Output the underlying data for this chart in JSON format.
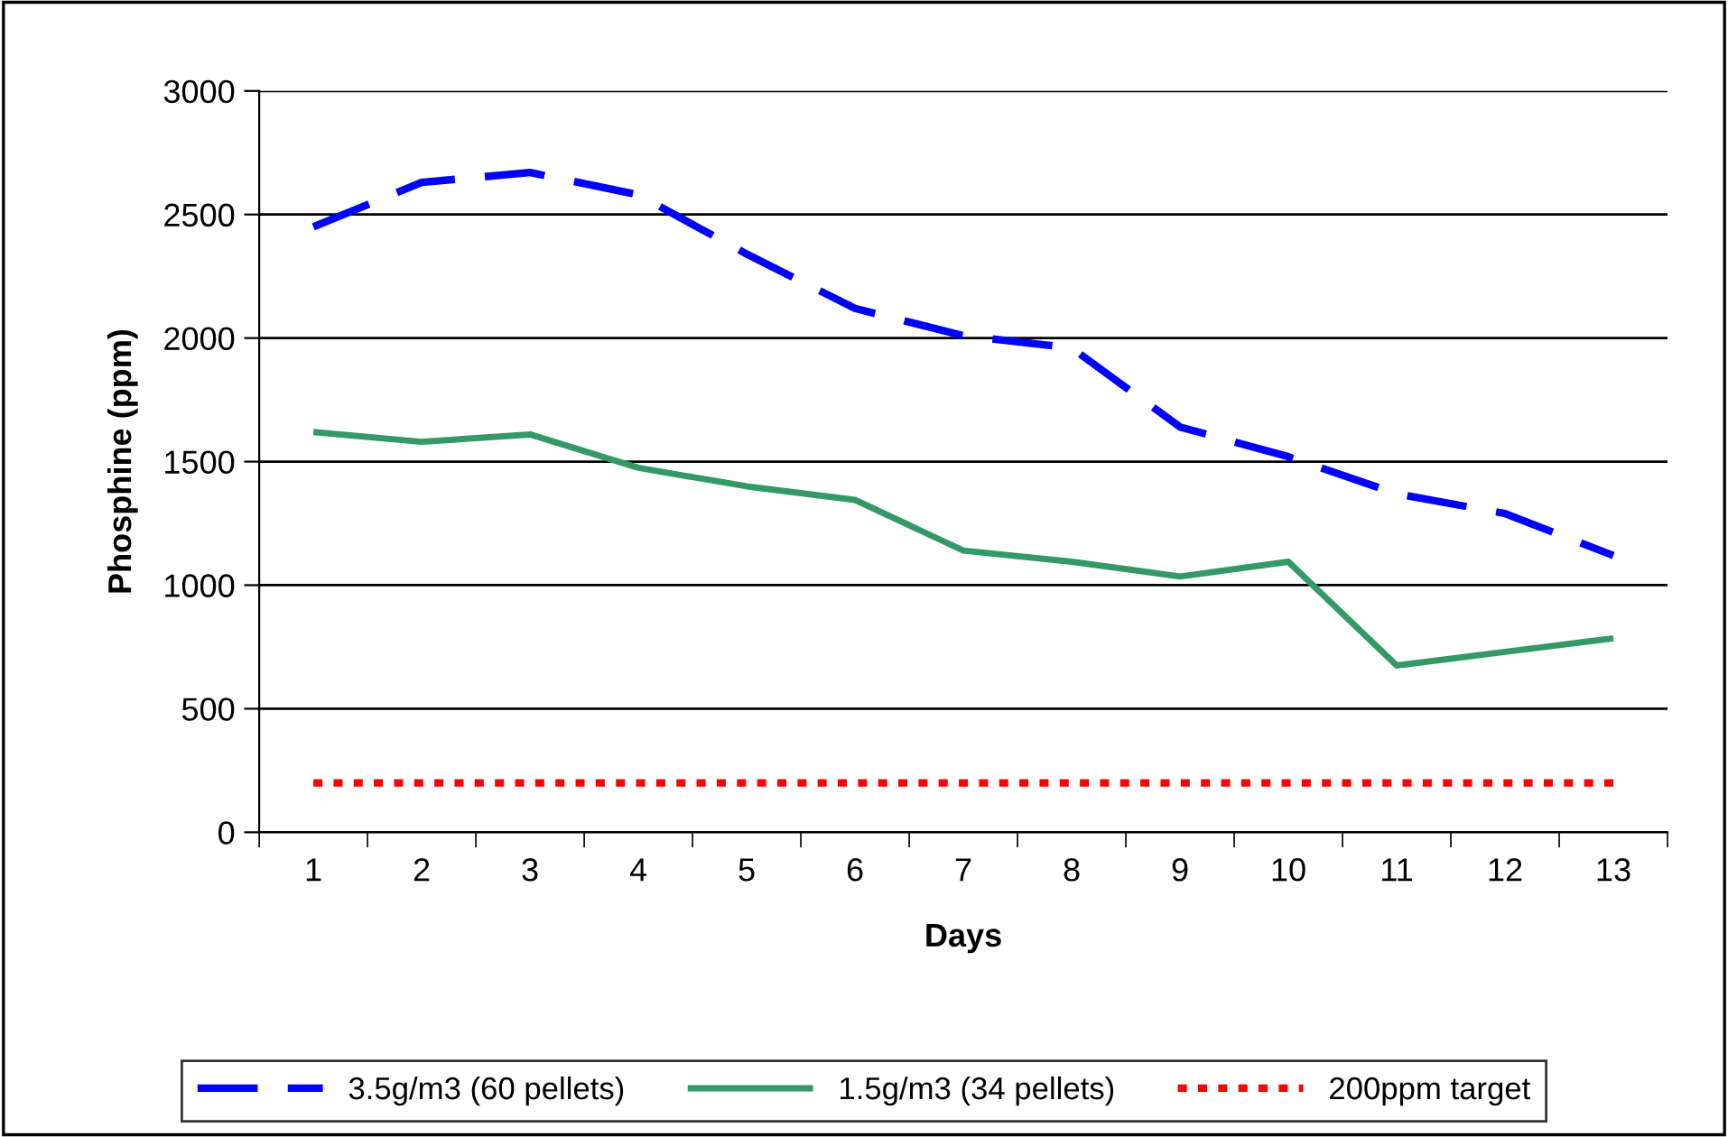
{
  "chart_data": {
    "type": "line",
    "xlabel": "Days",
    "ylabel": "Phosphine (ppm)",
    "categories": [
      "1",
      "2",
      "3",
      "4",
      "5",
      "6",
      "7",
      "8",
      "9",
      "10",
      "11",
      "12",
      "13"
    ],
    "series": [
      {
        "name": "3.5g/m3 (60 pellets)",
        "color": "#0000ff",
        "line_style": "dashed",
        "values": [
          2450,
          2630,
          2670,
          2580,
          2340,
          2120,
          2010,
          1960,
          1640,
          1520,
          1370,
          1290,
          1120
        ]
      },
      {
        "name": "1.5g/m3 (34 pellets)",
        "color": "#339966",
        "line_style": "solid",
        "values": [
          1620,
          1580,
          1610,
          1475,
          1400,
          1345,
          1140,
          1095,
          1035,
          1095,
          675,
          730,
          785
        ]
      },
      {
        "name": "200ppm target",
        "color": "#ff0000",
        "line_style": "dotted",
        "values": [
          200,
          200,
          200,
          200,
          200,
          200,
          200,
          200,
          200,
          200,
          200,
          200,
          200
        ]
      }
    ],
    "ylim": [
      0,
      3000
    ],
    "yticks": [
      0,
      500,
      1000,
      1500,
      2000,
      2500,
      3000
    ],
    "grid": "y",
    "legend": "bottom",
    "marker": "none"
  }
}
